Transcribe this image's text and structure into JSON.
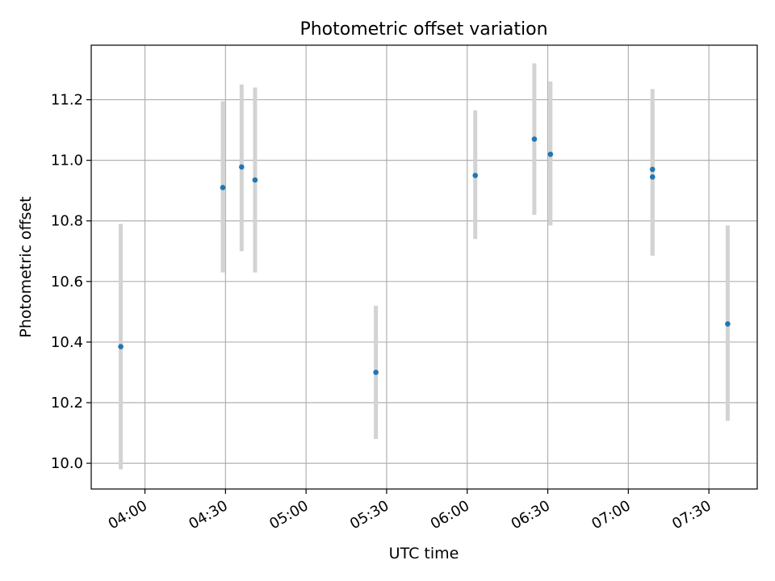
{
  "chart_data": {
    "type": "scatter",
    "title": "Photometric offset variation",
    "xlabel": "UTC time",
    "ylabel": "Photometric offset",
    "x_ticks": [
      "04:00",
      "04:30",
      "05:00",
      "05:30",
      "06:00",
      "06:30",
      "07:00",
      "07:30"
    ],
    "y_ticks": [
      "10.0",
      "10.2",
      "10.4",
      "10.6",
      "10.8",
      "11.0",
      "11.2"
    ],
    "xlim": [
      "03:40",
      "07:48"
    ],
    "ylim": [
      9.915,
      11.38
    ],
    "grid": true,
    "series": [
      {
        "points": [
          {
            "x": "03:51",
            "y": 10.385,
            "ylow": 9.98,
            "yhigh": 10.79
          },
          {
            "x": "04:29",
            "y": 10.91,
            "ylow": 10.63,
            "yhigh": 11.195
          },
          {
            "x": "04:36",
            "y": 10.978,
            "ylow": 10.7,
            "yhigh": 11.25
          },
          {
            "x": "04:41",
            "y": 10.935,
            "ylow": 10.63,
            "yhigh": 11.24
          },
          {
            "x": "05:26",
            "y": 10.3,
            "ylow": 10.08,
            "yhigh": 10.52
          },
          {
            "x": "06:03",
            "y": 10.95,
            "ylow": 10.74,
            "yhigh": 11.165
          },
          {
            "x": "06:25",
            "y": 11.07,
            "ylow": 10.82,
            "yhigh": 11.32
          },
          {
            "x": "06:31",
            "y": 11.02,
            "ylow": 10.785,
            "yhigh": 11.26
          },
          {
            "x": "07:09",
            "y": 10.945,
            "ylow": 10.685,
            "yhigh": 11.2
          },
          {
            "x": "07:09",
            "y": 10.97,
            "ylow": 10.695,
            "yhigh": 11.235
          },
          {
            "x": "07:37",
            "y": 10.46,
            "ylow": 10.14,
            "yhigh": 10.785
          }
        ]
      }
    ],
    "colors": {
      "marker": "#1f77b4",
      "errorbar": "#d3d3d3",
      "grid": "#b0b0b0",
      "axes": "#000000"
    }
  }
}
